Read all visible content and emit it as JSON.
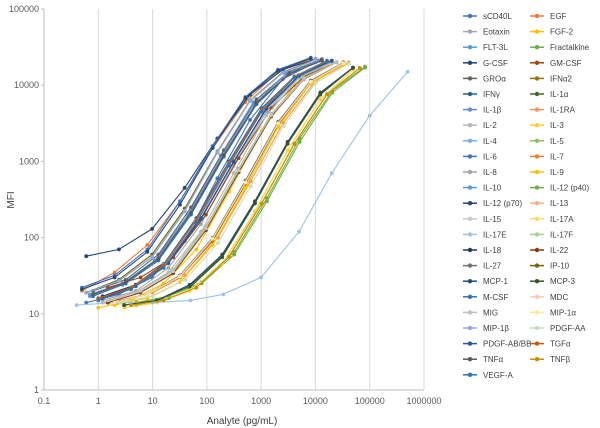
{
  "chart_data": {
    "type": "line",
    "title": "",
    "xlabel": "Analyte (pg/mL)",
    "ylabel": "MFI",
    "xscale": "log",
    "yscale": "log",
    "xlim": [
      0.1,
      1000000
    ],
    "ylim": [
      1,
      100000
    ],
    "x_tick_labels": [
      "0.1",
      "1",
      "10",
      "100",
      "1000",
      "10000",
      "100000",
      "1000000"
    ],
    "y_tick_labels": [
      "1",
      "10",
      "100",
      "1000",
      "10000",
      "100000"
    ],
    "grid": "vertical",
    "legend_position": "right",
    "series": [
      {
        "name": "sCD40L",
        "color": "#4472c4",
        "x": [
          0.6,
          2.4,
          9.8,
          39,
          156,
          625,
          2500,
          10000
        ],
        "y": [
          14,
          18,
          30,
          90,
          600,
          3500,
          12000,
          20000
        ]
      },
      {
        "name": "EGF",
        "color": "#ed7d31",
        "x": [
          0.5,
          2.0,
          8.0,
          32,
          128,
          512,
          2048,
          8192
        ],
        "y": [
          20,
          35,
          80,
          300,
          1500,
          6000,
          15000,
          22000
        ]
      },
      {
        "name": "Eotaxin",
        "color": "#a5a5a5",
        "x": [
          1.2,
          4.9,
          19.5,
          78,
          312,
          1250,
          5000,
          20000
        ],
        "y": [
          15,
          20,
          40,
          150,
          900,
          4500,
          13000,
          20000
        ]
      },
      {
        "name": "FGF-2",
        "color": "#ffc000",
        "x": [
          1.0,
          4.0,
          16,
          64,
          256,
          1024,
          4096,
          16384
        ],
        "y": [
          12,
          15,
          25,
          70,
          400,
          2500,
          10000,
          19000
        ]
      },
      {
        "name": "FLT-3L",
        "color": "#5b9bd5",
        "x": [
          0.7,
          2.8,
          11,
          45,
          180,
          720,
          2880,
          11520
        ],
        "y": [
          18,
          25,
          50,
          200,
          1200,
          6000,
          14000,
          21000
        ]
      },
      {
        "name": "Fractalkine",
        "color": "#70ad47",
        "x": [
          5,
          20,
          80,
          320,
          1280,
          5120,
          20480,
          81920
        ],
        "y": [
          13,
          16,
          25,
          60,
          300,
          1800,
          8000,
          17000
        ]
      },
      {
        "name": "G-CSF",
        "color": "#264478",
        "x": [
          0.6,
          2.4,
          9.8,
          39,
          156,
          625,
          2500,
          10000
        ],
        "y": [
          57,
          70,
          130,
          450,
          2000,
          7500,
          16000,
          22000
        ]
      },
      {
        "name": "GM-CSF",
        "color": "#9e480e",
        "x": [
          1.5,
          6,
          24,
          96,
          384,
          1536,
          6144,
          24576
        ],
        "y": [
          22,
          30,
          55,
          200,
          1100,
          5000,
          13000,
          20000
        ]
      },
      {
        "name": "GROα",
        "color": "#636363",
        "x": [
          0.8,
          3.2,
          12.8,
          51,
          205,
          820,
          3280,
          13120
        ],
        "y": [
          20,
          28,
          60,
          250,
          1400,
          6500,
          15000,
          22000
        ]
      },
      {
        "name": "IFNα2",
        "color": "#997300",
        "x": [
          2,
          8,
          32,
          128,
          512,
          2048,
          8192,
          32768
        ],
        "y": [
          14,
          18,
          30,
          90,
          500,
          3000,
          11000,
          20000
        ]
      },
      {
        "name": "IFNγ",
        "color": "#255e91",
        "x": [
          1.0,
          4.0,
          16,
          64,
          256,
          1024,
          4096,
          16384
        ],
        "y": [
          16,
          22,
          45,
          180,
          1000,
          5000,
          13000,
          21000
        ]
      },
      {
        "name": "IL-1α",
        "color": "#43682b",
        "x": [
          3,
          12,
          48,
          192,
          768,
          3072,
          12288,
          49152
        ],
        "y": [
          13,
          15,
          22,
          55,
          280,
          1700,
          7500,
          17000
        ]
      },
      {
        "name": "IL-1β",
        "color": "#698ed0",
        "x": [
          0.7,
          2.8,
          11,
          45,
          180,
          720,
          2880,
          11520
        ],
        "y": [
          17,
          24,
          48,
          190,
          1100,
          5500,
          14000,
          21000
        ]
      },
      {
        "name": "IL-1RA",
        "color": "#f1975a",
        "x": [
          2.5,
          10,
          40,
          160,
          640,
          2560,
          10240,
          40960
        ],
        "y": [
          15,
          19,
          32,
          100,
          550,
          3200,
          11500,
          20000
        ]
      },
      {
        "name": "IL-2",
        "color": "#b7b7b7",
        "x": [
          1.2,
          4.9,
          19.5,
          78,
          312,
          1250,
          5000,
          20000
        ],
        "y": [
          14,
          19,
          35,
          120,
          700,
          4000,
          12500,
          20000
        ]
      },
      {
        "name": "IL-3",
        "color": "#ffcd33",
        "x": [
          3,
          12,
          48,
          192,
          768,
          3072,
          12288,
          49152
        ],
        "y": [
          12,
          14,
          20,
          45,
          220,
          1400,
          6500,
          16000
        ]
      },
      {
        "name": "IL-4",
        "color": "#7cafdd",
        "x": [
          0.6,
          2.4,
          9.8,
          39,
          156,
          625,
          2500,
          10000
        ],
        "y": [
          19,
          27,
          55,
          220,
          1300,
          6200,
          14500,
          21500
        ]
      },
      {
        "name": "IL-5",
        "color": "#8cc168",
        "x": [
          1.5,
          6,
          24,
          96,
          384,
          1536,
          6144,
          24576
        ],
        "y": [
          15,
          20,
          38,
          140,
          800,
          4200,
          12500,
          20000
        ]
      },
      {
        "name": "IL-6",
        "color": "#4472c4",
        "x": [
          0.5,
          2.0,
          8.0,
          32,
          128,
          512,
          2048,
          8192
        ],
        "y": [
          22,
          32,
          70,
          300,
          1600,
          7000,
          16000,
          23000
        ]
      },
      {
        "name": "IL-7",
        "color": "#ed7d31",
        "x": [
          2,
          8,
          32,
          128,
          512,
          2048,
          8192,
          32768
        ],
        "y": [
          14,
          18,
          30,
          95,
          520,
          3100,
          11000,
          19500
        ]
      },
      {
        "name": "IL-8",
        "color": "#a5a5a5",
        "x": [
          0.8,
          3.2,
          12.8,
          51,
          205,
          820,
          3280,
          13120
        ],
        "y": [
          18,
          26,
          52,
          210,
          1200,
          5800,
          14000,
          21000
        ]
      },
      {
        "name": "IL-9",
        "color": "#ffc000",
        "x": [
          2,
          8,
          32,
          128,
          512,
          2048,
          8192,
          32768
        ],
        "y": [
          13,
          16,
          26,
          80,
          450,
          2800,
          10500,
          19000
        ]
      },
      {
        "name": "IL-10",
        "color": "#5b9bd5",
        "x": [
          1.0,
          4.0,
          16,
          64,
          256,
          1024,
          4096,
          16384
        ],
        "y": [
          16,
          22,
          44,
          170,
          950,
          4800,
          13000,
          20500
        ]
      },
      {
        "name": "IL-12 (p40)",
        "color": "#70ad47",
        "x": [
          5,
          20,
          80,
          320,
          1280,
          5120,
          20480,
          81920
        ],
        "y": [
          14,
          17,
          26,
          65,
          330,
          2000,
          8500,
          17500
        ]
      },
      {
        "name": "IL-12 (p70)",
        "color": "#264478",
        "x": [
          3,
          12,
          48,
          192,
          768,
          3072,
          12288,
          49152
        ],
        "y": [
          13,
          15,
          24,
          60,
          300,
          1800,
          8000,
          17000
        ]
      },
      {
        "name": "IL-13",
        "color": "#f4b183",
        "x": [
          1.5,
          6,
          24,
          96,
          384,
          1536,
          6144,
          24576
        ],
        "y": [
          15,
          20,
          36,
          130,
          750,
          4000,
          12000,
          20000
        ]
      },
      {
        "name": "IL-15",
        "color": "#c9c9c9",
        "x": [
          1.5,
          6,
          24,
          96,
          384,
          1536,
          6144,
          24576
        ],
        "y": [
          15,
          20,
          37,
          135,
          770,
          4100,
          12200,
          20000
        ]
      },
      {
        "name": "IL-17A",
        "color": "#ffd966",
        "x": [
          4,
          16,
          64,
          256,
          1024,
          4096,
          16384,
          65536
        ],
        "y": [
          13,
          15,
          23,
          58,
          290,
          1750,
          7800,
          17000
        ]
      },
      {
        "name": "IL-17E",
        "color": "#9dc3e6",
        "x": [
          0.4,
          2,
          10,
          50,
          200,
          1000,
          5000,
          20000,
          100000,
          500000
        ],
        "y": [
          13,
          14,
          14,
          15,
          18,
          30,
          120,
          700,
          4000,
          15000
        ]
      },
      {
        "name": "IL-17F",
        "color": "#a9d18e",
        "x": [
          2,
          8,
          32,
          128,
          512,
          2048,
          8192,
          32768
        ],
        "y": [
          14,
          18,
          31,
          98,
          540,
          3200,
          11200,
          19500
        ]
      },
      {
        "name": "IL-18",
        "color": "#203864",
        "x": [
          1.2,
          4.9,
          19.5,
          78,
          312,
          1250,
          5000,
          20000
        ],
        "y": [
          17,
          24,
          48,
          180,
          1000,
          5000,
          13500,
          21000
        ]
      },
      {
        "name": "IL-22",
        "color": "#843c0c",
        "x": [
          1.5,
          6,
          24,
          96,
          384,
          1536,
          6144,
          24576
        ],
        "y": [
          14,
          19,
          34,
          125,
          720,
          3900,
          12000,
          20000
        ]
      },
      {
        "name": "IL-27",
        "color": "#767171",
        "x": [
          2,
          8,
          32,
          128,
          512,
          2048,
          8192,
          32768
        ],
        "y": [
          14,
          18,
          32,
          100,
          560,
          3300,
          11500,
          19800
        ]
      },
      {
        "name": "IP-10",
        "color": "#7f6000",
        "x": [
          0.6,
          2.4,
          9.8,
          39,
          156,
          625,
          2500,
          10000
        ],
        "y": [
          19,
          28,
          60,
          240,
          1350,
          6300,
          14800,
          21800
        ]
      },
      {
        "name": "MCP-1",
        "color": "#1f4e79",
        "x": [
          0.5,
          2.0,
          8.0,
          32,
          128,
          512,
          2048,
          8192
        ],
        "y": [
          21,
          30,
          65,
          270,
          1500,
          6800,
          15500,
          22500
        ]
      },
      {
        "name": "MCP-3",
        "color": "#375623",
        "x": [
          3,
          12,
          48,
          192,
          768,
          3072,
          12288,
          49152
        ],
        "y": [
          13,
          15,
          23,
          57,
          285,
          1720,
          7700,
          16800
        ]
      },
      {
        "name": "M-CSF",
        "color": "#2e75b6",
        "x": [
          0.8,
          3.2,
          12.8,
          51,
          205,
          820,
          3280,
          13120
        ],
        "y": [
          17,
          25,
          50,
          200,
          1150,
          5600,
          14000,
          21000
        ]
      },
      {
        "name": "MDC",
        "color": "#f8cbad",
        "x": [
          1.0,
          4.0,
          16,
          64,
          256,
          1024,
          4096,
          16384
        ],
        "y": [
          16,
          21,
          42,
          165,
          930,
          4700,
          12800,
          20500
        ]
      },
      {
        "name": "MIG",
        "color": "#bfbfbf",
        "x": [
          1.5,
          6,
          24,
          96,
          384,
          1536,
          6144,
          24576
        ],
        "y": [
          15,
          20,
          36,
          132,
          760,
          4050,
          12100,
          20000
        ]
      },
      {
        "name": "MIP-1α",
        "color": "#ffe699",
        "x": [
          2,
          8,
          32,
          128,
          512,
          2048,
          8192,
          32768
        ],
        "y": [
          14,
          18,
          31,
          97,
          530,
          3150,
          11100,
          19500
        ]
      },
      {
        "name": "MIP-1β",
        "color": "#8faadc",
        "x": [
          0.6,
          2.4,
          9.8,
          39,
          156,
          625,
          2500,
          10000
        ],
        "y": [
          19,
          27,
          56,
          225,
          1320,
          6250,
          14600,
          21600
        ]
      },
      {
        "name": "PDGF-AA",
        "color": "#c5e0b4",
        "x": [
          2.5,
          10,
          40,
          160,
          640,
          2560,
          10240,
          40960
        ],
        "y": [
          14,
          17,
          28,
          85,
          470,
          2900,
          10800,
          19200
        ]
      },
      {
        "name": "PDGF-AB/BB",
        "color": "#2f5597",
        "x": [
          1.2,
          4.9,
          19.5,
          78,
          312,
          1250,
          5000,
          20000
        ],
        "y": [
          16,
          23,
          46,
          175,
          980,
          4900,
          13300,
          20800
        ]
      },
      {
        "name": "TGFα",
        "color": "#c55a11",
        "x": [
          1.0,
          4.0,
          16,
          64,
          256,
          1024,
          4096,
          16384
        ],
        "y": [
          16,
          22,
          43,
          168,
          940,
          4750,
          12900,
          20600
        ]
      },
      {
        "name": "TNFα",
        "color": "#595959",
        "x": [
          0.8,
          3.2,
          12.8,
          51,
          205,
          820,
          3280,
          13120
        ],
        "y": [
          18,
          26,
          53,
          212,
          1210,
          5850,
          14100,
          21100
        ]
      },
      {
        "name": "TNFβ",
        "color": "#bf9000",
        "x": [
          4,
          16,
          64,
          256,
          1024,
          4096,
          16384,
          65536
        ],
        "y": [
          13,
          15,
          22,
          56,
          280,
          1700,
          7600,
          16800
        ]
      },
      {
        "name": "VEGF-A",
        "color": "#2e75b6",
        "x": [
          1.0,
          4.0,
          16,
          64,
          256,
          1024,
          4096,
          16384
        ],
        "y": [
          15,
          21,
          40,
          155,
          880,
          4500,
          12600,
          20300
        ]
      }
    ]
  }
}
